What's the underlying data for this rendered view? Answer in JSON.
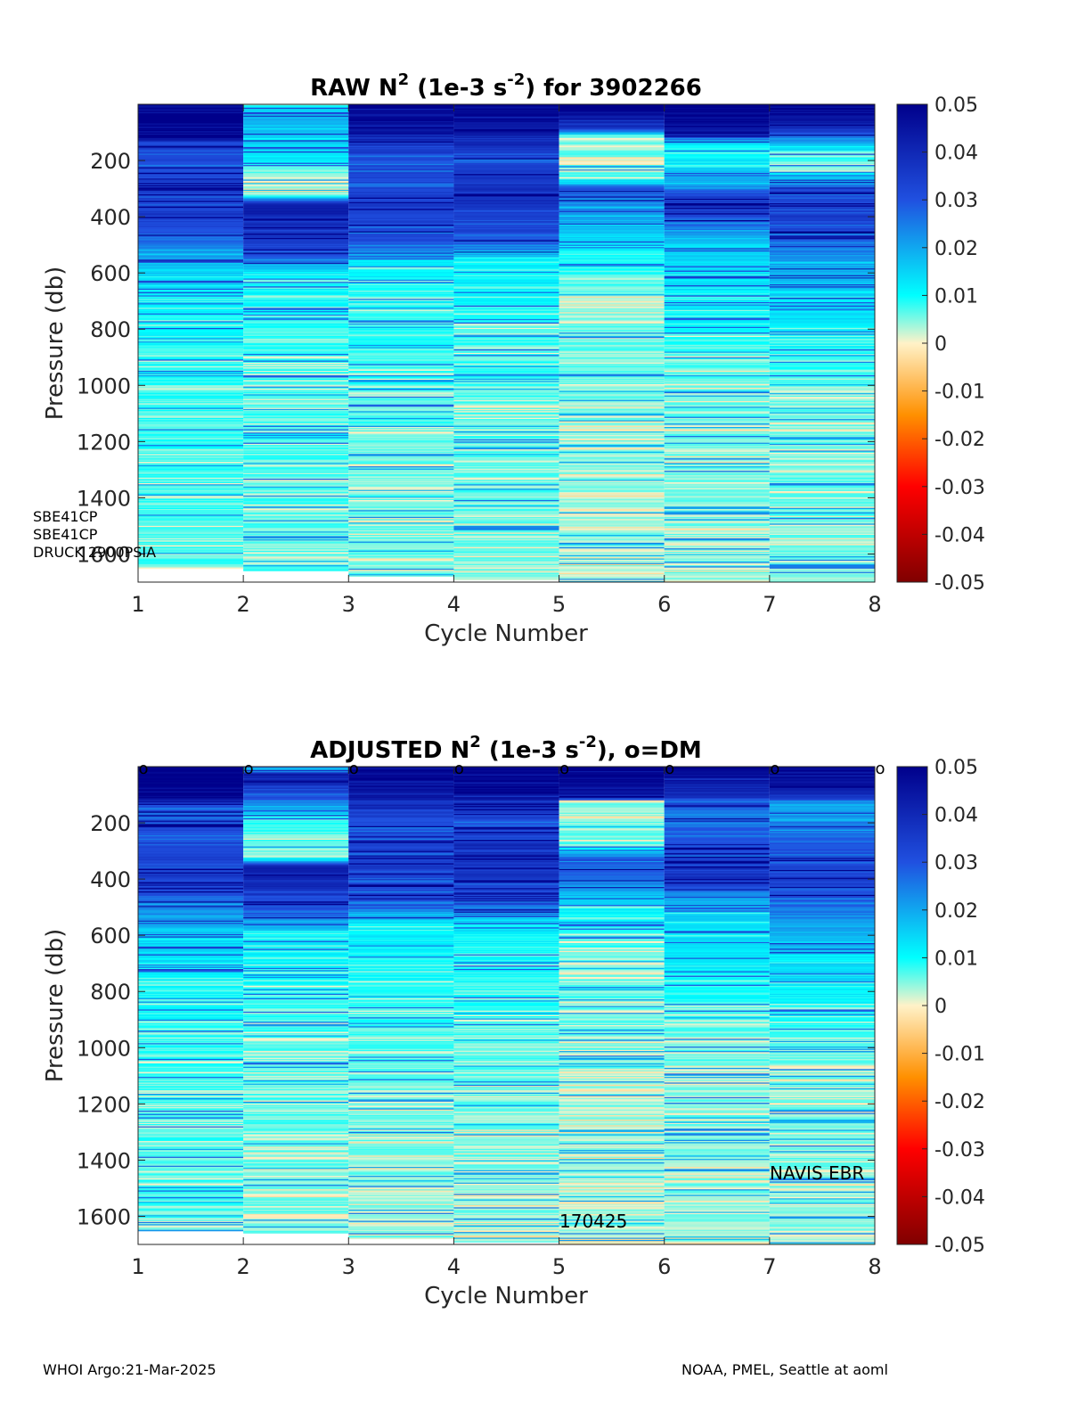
{
  "chart_data": [
    {
      "type": "heatmap",
      "title": {
        "main": "RAW N",
        "sup1": "2",
        "mid": " (1e-3 s",
        "sup2": "-2",
        "tail": ") for 3902266"
      },
      "xlabel": "Cycle Number",
      "ylabel": "Pressure (db)",
      "xlim": [
        1,
        8
      ],
      "ylim": [
        0,
        1700
      ],
      "y_reversed": true,
      "xticks": [
        "1",
        "2",
        "3",
        "4",
        "5",
        "6",
        "7",
        "8"
      ],
      "yticks": [
        "200",
        "400",
        "600",
        "800",
        "1000",
        "1200",
        "1400",
        "1600"
      ],
      "colorbar": {
        "min": -0.05,
        "max": 0.05,
        "ticks": [
          "0.05",
          "0.04",
          "0.03",
          "0.02",
          "0.01",
          "0",
          "-0.01",
          "-0.02",
          "-0.03",
          "-0.04",
          "-0.05"
        ]
      },
      "colormap": [
        "#800000",
        "#ff0000",
        "#ff9000",
        "#fff2c8",
        "#00ffff",
        "#2050e0",
        "#00008b"
      ],
      "cycles": [
        {
          "cycle": 1,
          "max_pressure": 1650,
          "profile": [
            [
              0,
              0.05
            ],
            [
              120,
              0.05
            ],
            [
              140,
              0.03
            ],
            [
              400,
              0.035
            ],
            [
              550,
              0.02
            ],
            [
              600,
              0.015
            ],
            [
              800,
              0.01
            ],
            [
              1000,
              0.008
            ],
            [
              1200,
              0.008
            ],
            [
              1400,
              0.007
            ],
            [
              1650,
              0.007
            ]
          ]
        },
        {
          "cycle": 2,
          "max_pressure": 1660,
          "profile": [
            [
              0,
              0.006
            ],
            [
              40,
              0.02
            ],
            [
              200,
              0.012
            ],
            [
              260,
              0.003
            ],
            [
              320,
              0.004
            ],
            [
              360,
              0.045
            ],
            [
              540,
              0.03
            ],
            [
              600,
              0.012
            ],
            [
              800,
              0.008
            ],
            [
              1200,
              0.007
            ],
            [
              1660,
              0.006
            ]
          ]
        },
        {
          "cycle": 3,
          "max_pressure": 1680,
          "profile": [
            [
              0,
              0.05
            ],
            [
              100,
              0.045
            ],
            [
              200,
              0.03
            ],
            [
              350,
              0.035
            ],
            [
              500,
              0.03
            ],
            [
              560,
              0.012
            ],
            [
              800,
              0.008
            ],
            [
              1200,
              0.006
            ],
            [
              1680,
              0.005
            ]
          ]
        },
        {
          "cycle": 4,
          "max_pressure": 1690,
          "profile": [
            [
              0,
              0.05
            ],
            [
              100,
              0.045
            ],
            [
              200,
              0.03
            ],
            [
              300,
              0.04
            ],
            [
              500,
              0.03
            ],
            [
              560,
              0.012
            ],
            [
              800,
              0.008
            ],
            [
              1200,
              0.006
            ],
            [
              1690,
              0.005
            ]
          ]
        },
        {
          "cycle": 5,
          "max_pressure": 1700,
          "profile": [
            [
              0,
              0.05
            ],
            [
              80,
              0.04
            ],
            [
              120,
              0.004
            ],
            [
              260,
              0.006
            ],
            [
              300,
              0.03
            ],
            [
              400,
              0.02
            ],
            [
              500,
              0.012
            ],
            [
              700,
              0.004
            ],
            [
              800,
              0.006
            ],
            [
              1200,
              0.004
            ],
            [
              1700,
              0.003
            ]
          ]
        },
        {
          "cycle": 6,
          "max_pressure": 1700,
          "profile": [
            [
              0,
              0.05
            ],
            [
              100,
              0.045
            ],
            [
              150,
              0.008
            ],
            [
              280,
              0.02
            ],
            [
              350,
              0.04
            ],
            [
              500,
              0.015
            ],
            [
              700,
              0.012
            ],
            [
              900,
              0.006
            ],
            [
              1200,
              0.005
            ],
            [
              1700,
              0.004
            ]
          ]
        },
        {
          "cycle": 7,
          "max_pressure": 1700,
          "profile": [
            [
              0,
              0.05
            ],
            [
              80,
              0.04
            ],
            [
              150,
              0.015
            ],
            [
              230,
              0.005
            ],
            [
              300,
              0.03
            ],
            [
              400,
              0.035
            ],
            [
              600,
              0.018
            ],
            [
              800,
              0.012
            ],
            [
              1000,
              0.005
            ],
            [
              1400,
              0.006
            ],
            [
              1700,
              0.005
            ]
          ]
        }
      ],
      "annotations": [
        "SBE41CP",
        "SBE41CP",
        "DRUCK 2900PSIA"
      ]
    },
    {
      "type": "heatmap",
      "title": {
        "main": "ADJUSTED N",
        "sup1": "2",
        "mid": " (1e-3 s",
        "sup2": "-2",
        "tail": "), o=DM"
      },
      "xlabel": "Cycle Number",
      "ylabel": "Pressure (db)",
      "xlim": [
        1,
        8
      ],
      "ylim": [
        0,
        1700
      ],
      "y_reversed": true,
      "xticks": [
        "1",
        "2",
        "3",
        "4",
        "5",
        "6",
        "7",
        "8"
      ],
      "yticks": [
        "200",
        "400",
        "600",
        "800",
        "1000",
        "1200",
        "1400",
        "1600"
      ],
      "colorbar": {
        "min": -0.05,
        "max": 0.05,
        "ticks": [
          "0.05",
          "0.04",
          "0.03",
          "0.02",
          "0.01",
          "0",
          "-0.01",
          "-0.02",
          "-0.03",
          "-0.04",
          "-0.05"
        ]
      },
      "colormap": [
        "#800000",
        "#ff0000",
        "#ff9000",
        "#fff2c8",
        "#00ffff",
        "#2050e0",
        "#00008b"
      ],
      "dm_markers": [
        "o",
        "o",
        "o",
        "o",
        "o",
        "o",
        "o",
        "o"
      ],
      "cycles": [
        {
          "cycle": 1,
          "max_pressure": 1650,
          "profile": [
            [
              0,
              0.05
            ],
            [
              120,
              0.05
            ],
            [
              140,
              0.03
            ],
            [
              400,
              0.035
            ],
            [
              550,
              0.02
            ],
            [
              600,
              0.015
            ],
            [
              800,
              0.01
            ],
            [
              1000,
              0.008
            ],
            [
              1200,
              0.007
            ],
            [
              1400,
              0.007
            ],
            [
              1650,
              0.006
            ]
          ]
        },
        {
          "cycle": 2,
          "max_pressure": 1660,
          "profile": [
            [
              0,
              0.006
            ],
            [
              30,
              0.045
            ],
            [
              110,
              0.03
            ],
            [
              200,
              0.008
            ],
            [
              320,
              0.004
            ],
            [
              360,
              0.045
            ],
            [
              520,
              0.03
            ],
            [
              600,
              0.012
            ],
            [
              800,
              0.008
            ],
            [
              1200,
              0.006
            ],
            [
              1660,
              0.005
            ]
          ]
        },
        {
          "cycle": 3,
          "max_pressure": 1680,
          "profile": [
            [
              0,
              0.05
            ],
            [
              100,
              0.045
            ],
            [
              200,
              0.03
            ],
            [
              350,
              0.035
            ],
            [
              500,
              0.03
            ],
            [
              560,
              0.012
            ],
            [
              800,
              0.008
            ],
            [
              1200,
              0.005
            ],
            [
              1680,
              0.004
            ]
          ]
        },
        {
          "cycle": 4,
          "max_pressure": 1690,
          "profile": [
            [
              0,
              0.05
            ],
            [
              100,
              0.045
            ],
            [
              200,
              0.03
            ],
            [
              300,
              0.04
            ],
            [
              500,
              0.03
            ],
            [
              560,
              0.012
            ],
            [
              800,
              0.008
            ],
            [
              1200,
              0.005
            ],
            [
              1690,
              0.004
            ]
          ]
        },
        {
          "cycle": 5,
          "max_pressure": 1700,
          "profile": [
            [
              0,
              0.05
            ],
            [
              110,
              0.045
            ],
            [
              120,
              0.004
            ],
            [
              280,
              0.006
            ],
            [
              330,
              0.03
            ],
            [
              400,
              0.025
            ],
            [
              500,
              0.012
            ],
            [
              700,
              0.004
            ],
            [
              800,
              0.006
            ],
            [
              1200,
              0.004
            ],
            [
              1700,
              0.003
            ]
          ]
        },
        {
          "cycle": 6,
          "max_pressure": 1700,
          "profile": [
            [
              0,
              0.05
            ],
            [
              100,
              0.04
            ],
            [
              150,
              0.025
            ],
            [
              300,
              0.03
            ],
            [
              380,
              0.04
            ],
            [
              500,
              0.015
            ],
            [
              700,
              0.012
            ],
            [
              900,
              0.006
            ],
            [
              1200,
              0.005
            ],
            [
              1700,
              0.004
            ]
          ]
        },
        {
          "cycle": 7,
          "max_pressure": 1700,
          "profile": [
            [
              0,
              0.05
            ],
            [
              80,
              0.045
            ],
            [
              150,
              0.02
            ],
            [
              300,
              0.03
            ],
            [
              400,
              0.035
            ],
            [
              600,
              0.018
            ],
            [
              800,
              0.012
            ],
            [
              1000,
              0.005
            ],
            [
              1400,
              0.005
            ],
            [
              1700,
              0.004
            ]
          ]
        }
      ],
      "annotations": [
        "NAVIS EBR",
        "170425"
      ]
    }
  ],
  "footer": {
    "left": "WHOI Argo:21-Mar-2025",
    "right": "NOAA, PMEL, Seattle at aoml"
  }
}
